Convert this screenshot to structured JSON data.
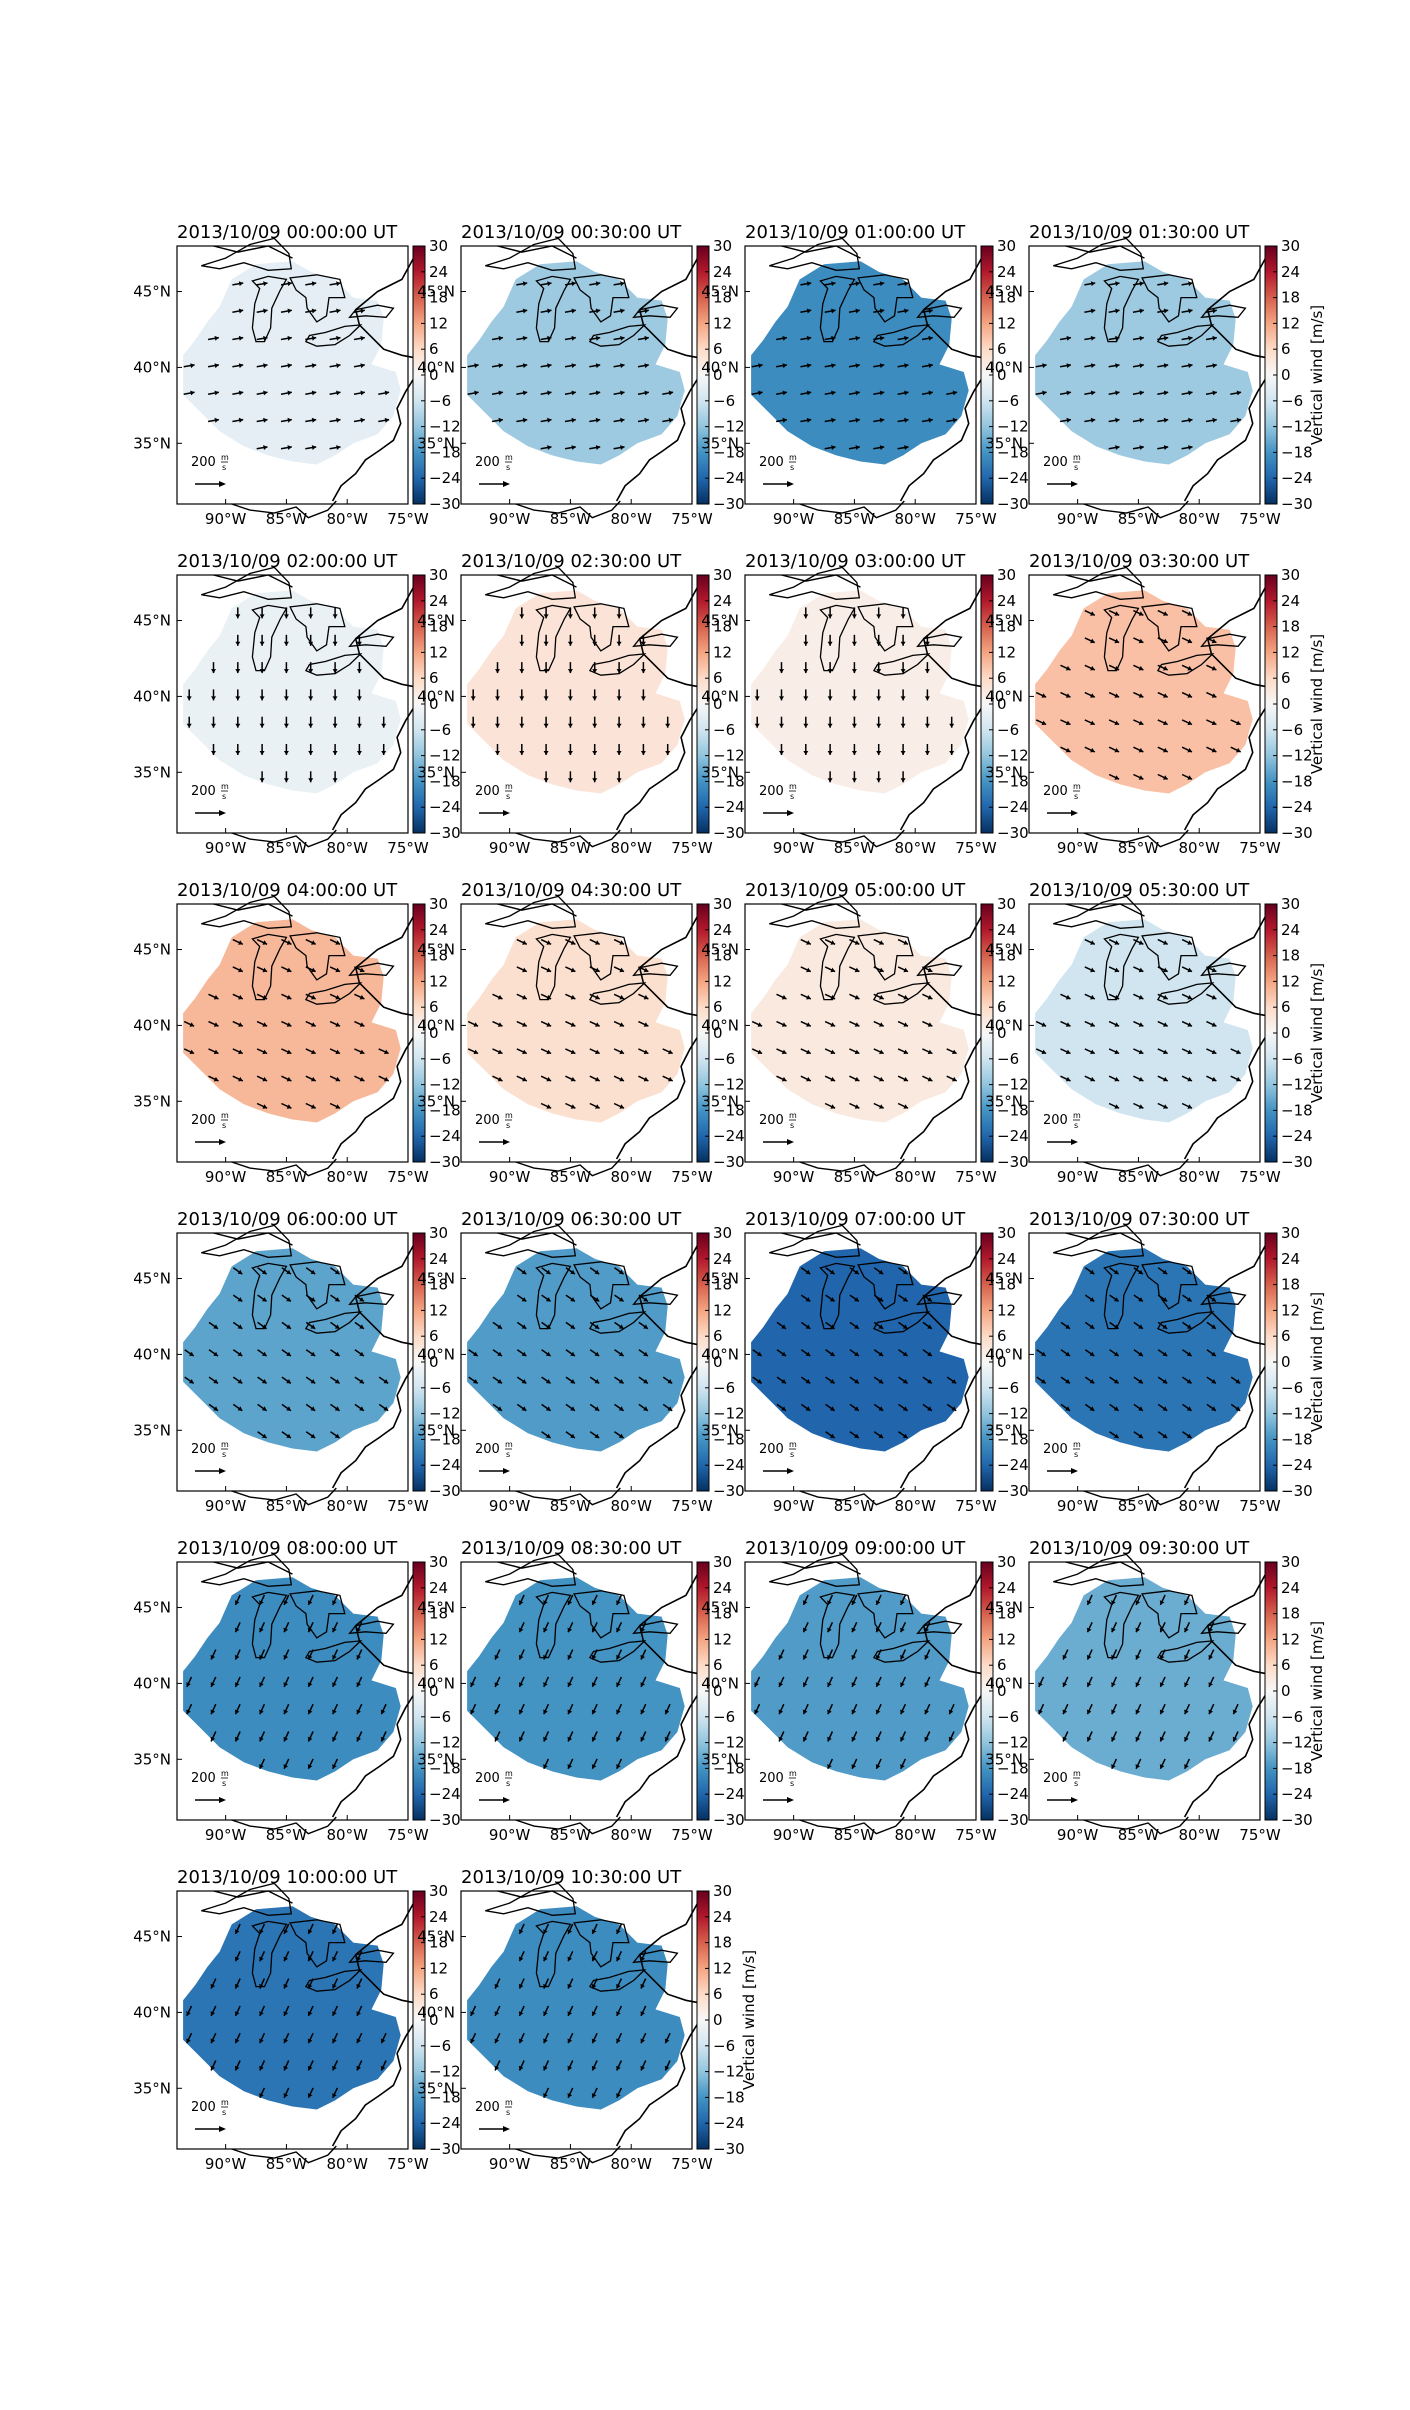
{
  "figure": {
    "colorbar": {
      "ticks": [
        30,
        24,
        18,
        12,
        6,
        0,
        -6,
        -12,
        -18,
        -24,
        -30
      ],
      "label": "Vertical wind [m/s]",
      "cmap_stops": [
        "#053061",
        "#2166ac",
        "#4393c3",
        "#92c5de",
        "#d1e5f0",
        "#f7f7f7",
        "#fddbc7",
        "#f4a582",
        "#d6604d",
        "#b2182b",
        "#67001f"
      ]
    },
    "axes": {
      "lon_ticks": [
        "90°W",
        "85°W",
        "80°W",
        "75°W"
      ],
      "lat_ticks": [
        "45°N",
        "40°N",
        "35°N"
      ]
    },
    "scale_arrow": {
      "value": "200",
      "unit_num": "m",
      "unit_den": "s"
    }
  },
  "chart_data": {
    "type": "heatmap",
    "description_free": true,
    "panels": [
      {
        "title": "2013/10/09 00:00:00 UT",
        "vertical_wind": -3
      },
      {
        "title": "2013/10/09 00:30:00 UT",
        "vertical_wind": -11
      },
      {
        "title": "2013/10/09 01:00:00 UT",
        "vertical_wind": -19
      },
      {
        "title": "2013/10/09 01:30:00 UT",
        "vertical_wind": -11
      },
      {
        "title": "2013/10/09 02:00:00 UT",
        "vertical_wind": -2
      },
      {
        "title": "2013/10/09 02:30:00 UT",
        "vertical_wind": 4
      },
      {
        "title": "2013/10/09 03:00:00 UT",
        "vertical_wind": 2
      },
      {
        "title": "2013/10/09 03:30:00 UT",
        "vertical_wind": 9
      },
      {
        "title": "2013/10/09 04:00:00 UT",
        "vertical_wind": 10
      },
      {
        "title": "2013/10/09 04:30:00 UT",
        "vertical_wind": 5
      },
      {
        "title": "2013/10/09 05:00:00 UT",
        "vertical_wind": 3
      },
      {
        "title": "2013/10/09 05:30:00 UT",
        "vertical_wind": -6
      },
      {
        "title": "2013/10/09 06:00:00 UT",
        "vertical_wind": -16
      },
      {
        "title": "2013/10/09 06:30:00 UT",
        "vertical_wind": -17
      },
      {
        "title": "2013/10/09 07:00:00 UT",
        "vertical_wind": -24
      },
      {
        "title": "2013/10/09 07:30:00 UT",
        "vertical_wind": -22
      },
      {
        "title": "2013/10/09 08:00:00 UT",
        "vertical_wind": -19
      },
      {
        "title": "2013/10/09 08:30:00 UT",
        "vertical_wind": -18
      },
      {
        "title": "2013/10/09 09:00:00 UT",
        "vertical_wind": -17
      },
      {
        "title": "2013/10/09 09:30:00 UT",
        "vertical_wind": -15
      },
      {
        "title": "2013/10/09 10:00:00 UT",
        "vertical_wind": -22
      },
      {
        "title": "2013/10/09 10:30:00 UT",
        "vertical_wind": -19
      }
    ],
    "clim": [
      -30,
      30
    ],
    "xlim": [
      -94,
      -75
    ],
    "ylim": [
      31,
      48
    ]
  }
}
